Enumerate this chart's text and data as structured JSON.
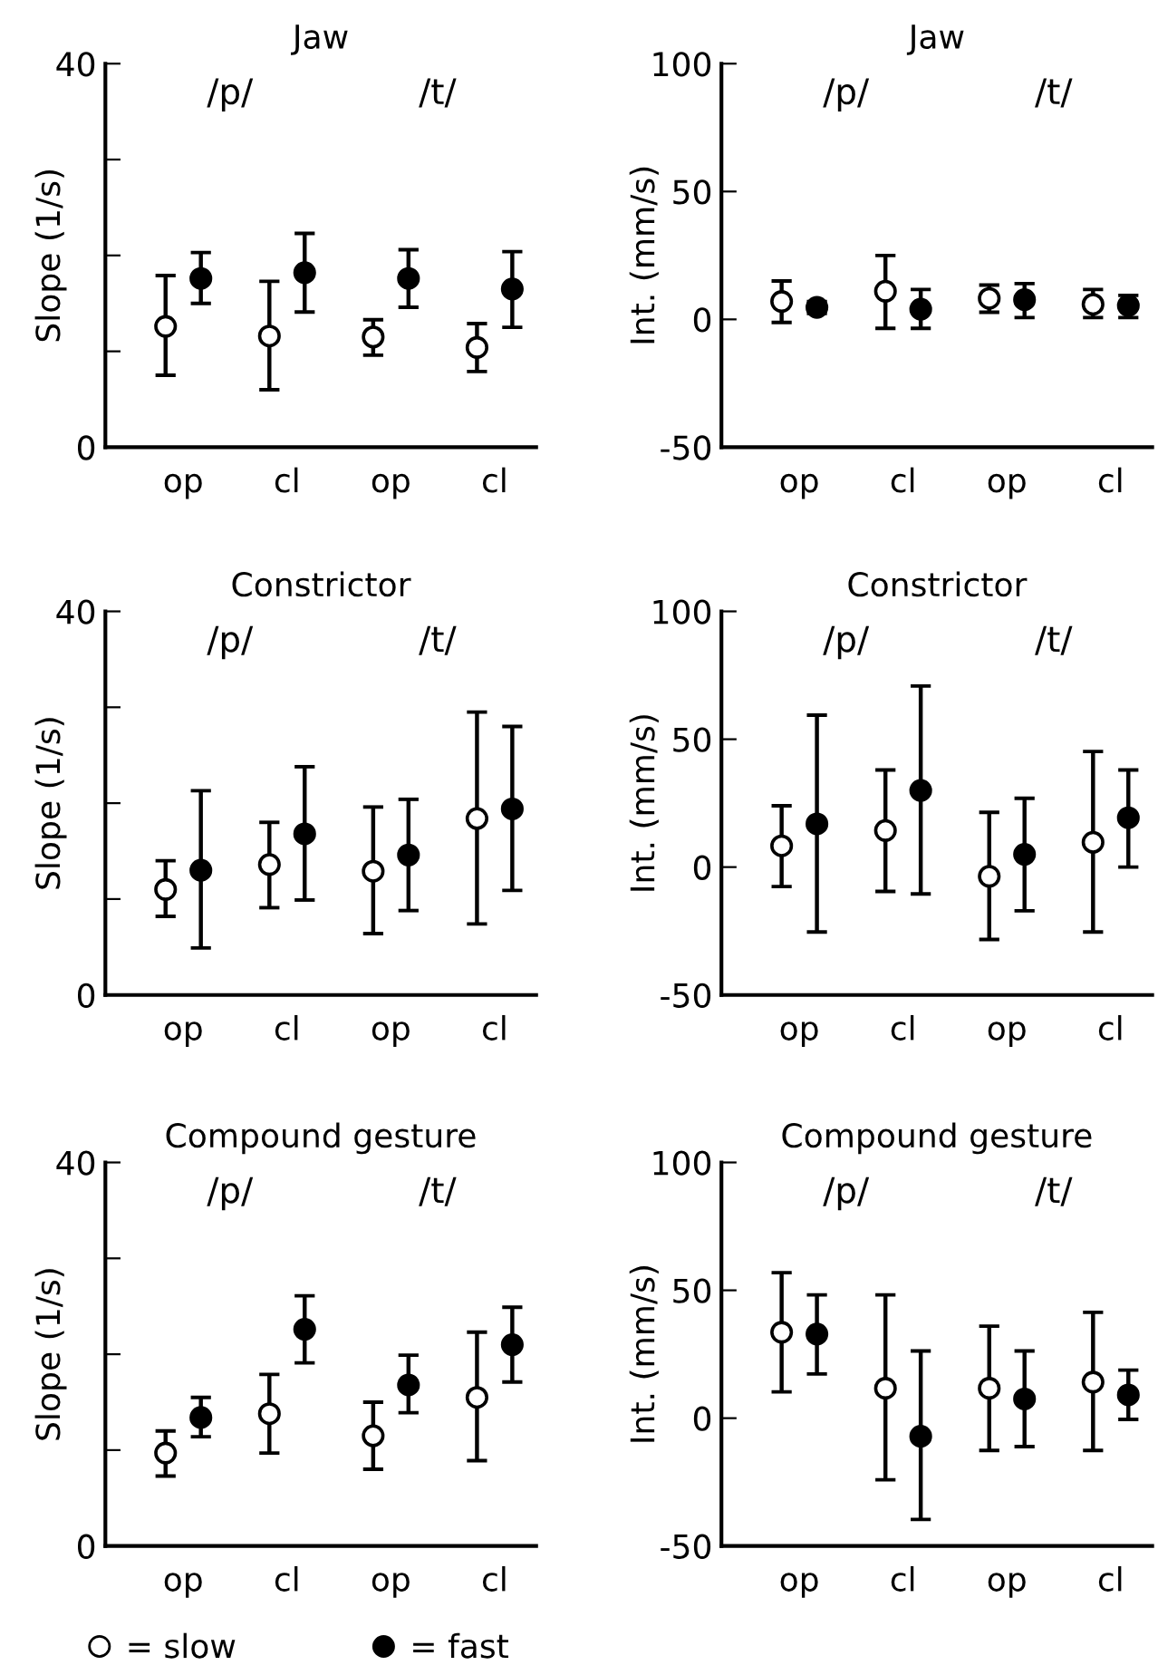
{
  "chart_data": [
    {
      "type": "scatter",
      "title": "Jaw",
      "ylabel": "Slope (1/s)",
      "categories": [
        "op",
        "cl",
        "op",
        "cl"
      ],
      "annotations": [
        "/p/",
        "/t/"
      ],
      "ylim": [
        0,
        40
      ],
      "yticks": [
        0,
        {
          "value": 10,
          "label": null
        },
        {
          "value": 20,
          "label": null
        },
        {
          "value": 30,
          "label": null
        },
        40
      ],
      "marker": "circle",
      "legend": false,
      "series": [
        {
          "color": "#ffffff",
          "values": [
            12.6,
            11.6,
            11.5,
            10.4
          ],
          "errors": [
            [
              7.5,
              17.9
            ],
            [
              6.0,
              17.3
            ],
            [
              9.6,
              13.3
            ],
            [
              7.9,
              12.9
            ]
          ]
        },
        {
          "color": "#000000",
          "values": [
            17.6,
            18.2,
            17.6,
            16.5
          ],
          "errors": [
            [
              15.0,
              20.3
            ],
            [
              14.1,
              22.3
            ],
            [
              14.6,
              20.6
            ],
            [
              12.5,
              20.4
            ]
          ]
        }
      ]
    },
    {
      "type": "scatter",
      "title": "Jaw",
      "ylabel": "Int. (mm/s)",
      "categories": [
        "op",
        "cl",
        "op",
        "cl"
      ],
      "annotations": [
        "/p/",
        "/t/"
      ],
      "ylim": [
        -50,
        100
      ],
      "yticks": [
        -50,
        0,
        50,
        100
      ],
      "marker": "circle",
      "legend": false,
      "series": [
        {
          "color": "#ffffff",
          "values": [
            7.0,
            11,
            8.2,
            5.9
          ],
          "errors": [
            [
              -1.2,
              15
            ],
            [
              -3.5,
              25
            ],
            [
              2.8,
              13.4
            ],
            [
              0.7,
              11.7
            ]
          ]
        },
        {
          "color": "#000000",
          "values": [
            4.7,
            4,
            7.7,
            5.4
          ],
          "errors": [
            [
              2.3,
              7
            ],
            [
              -3.5,
              11.7
            ],
            [
              0.7,
              14
            ],
            [
              0.7,
              9.4
            ]
          ]
        }
      ]
    },
    {
      "type": "scatter",
      "title": "Constrictor",
      "ylabel": "Slope (1/s)",
      "categories": [
        "op",
        "cl",
        "op",
        "cl"
      ],
      "annotations": [
        "/p/",
        "/t/"
      ],
      "ylim": [
        0,
        40
      ],
      "yticks": [
        0,
        {
          "value": 10,
          "label": null
        },
        {
          "value": 20,
          "label": null
        },
        {
          "value": 30,
          "label": null
        },
        40
      ],
      "marker": "circle",
      "legend": false,
      "series": [
        {
          "color": "#ffffff",
          "values": [
            11.0,
            13.6,
            12.9,
            18.4
          ],
          "errors": [
            [
              8.2,
              14.0
            ],
            [
              9.1,
              18.0
            ],
            [
              6.4,
              19.6
            ],
            [
              7.4,
              29.5
            ]
          ]
        },
        {
          "color": "#000000",
          "values": [
            13.0,
            16.8,
            14.6,
            19.4
          ],
          "errors": [
            [
              4.9,
              21.3
            ],
            [
              9.9,
              23.8
            ],
            [
              8.8,
              20.4
            ],
            [
              10.9,
              28.0
            ]
          ]
        }
      ]
    },
    {
      "type": "scatter",
      "title": "Constrictor",
      "ylabel": "Int. (mm/s)",
      "categories": [
        "op",
        "cl",
        "op",
        "cl"
      ],
      "annotations": [
        "/p/",
        "/t/"
      ],
      "ylim": [
        -50,
        100
      ],
      "yticks": [
        -50,
        0,
        50,
        100
      ],
      "marker": "circle",
      "legend": false,
      "series": [
        {
          "color": "#ffffff",
          "values": [
            8.3,
            14.3,
            -3.6,
            9.7
          ],
          "errors": [
            [
              -7.6,
              24
            ],
            [
              -9.5,
              38
            ],
            [
              -28.3,
              21.4
            ],
            [
              -25.4,
              45.2
            ]
          ]
        },
        {
          "color": "#000000",
          "values": [
            16.9,
            30,
            5,
            19.3
          ],
          "errors": [
            [
              -25.4,
              59.4
            ],
            [
              -10.5,
              70.8
            ],
            [
              -17.1,
              26.9
            ],
            [
              0,
              38
            ]
          ]
        }
      ]
    },
    {
      "type": "scatter",
      "title": "Compound gesture",
      "ylabel": "Slope (1/s)",
      "categories": [
        "op",
        "cl",
        "op",
        "cl"
      ],
      "annotations": [
        "/p/",
        "/t/"
      ],
      "ylim": [
        0,
        40
      ],
      "yticks": [
        0,
        {
          "value": 10,
          "label": null
        },
        {
          "value": 20,
          "label": null
        },
        {
          "value": 30,
          "label": null
        },
        40
      ],
      "marker": "circle",
      "legend": "bottom",
      "series": [
        {
          "name": "= slow",
          "color": "#ffffff",
          "values": [
            9.7,
            13.8,
            11.5,
            15.5
          ],
          "errors": [
            [
              7.3,
              12.0
            ],
            [
              9.7,
              17.9
            ],
            [
              8.0,
              15.0
            ],
            [
              8.9,
              22.3
            ]
          ]
        },
        {
          "name": "= fast",
          "color": "#000000",
          "values": [
            13.4,
            22.6,
            16.8,
            21.0
          ],
          "errors": [
            [
              11.4,
              15.5
            ],
            [
              19.1,
              26.1
            ],
            [
              13.9,
              19.9
            ],
            [
              17.1,
              24.9
            ]
          ]
        }
      ]
    },
    {
      "type": "scatter",
      "title": "Compound gesture",
      "ylabel": "Int. (mm/s)",
      "categories": [
        "op",
        "cl",
        "op",
        "cl"
      ],
      "annotations": [
        "/p/",
        "/t/"
      ],
      "ylim": [
        -50,
        100
      ],
      "yticks": [
        -50,
        0,
        50,
        100
      ],
      "marker": "circle",
      "legend": false,
      "series": [
        {
          "color": "#ffffff",
          "values": [
            33.6,
            11.7,
            11.7,
            14.1
          ],
          "errors": [
            [
              10.3,
              56.9
            ],
            [
              -24.1,
              48.2
            ],
            [
              -12.6,
              36
            ],
            [
              -12.6,
              41.4
            ]
          ]
        },
        {
          "color": "#000000",
          "values": [
            32.9,
            -7.1,
            7.5,
            9.1
          ],
          "errors": [
            [
              17.3,
              48.2
            ],
            [
              -39.6,
              26.3
            ],
            [
              -11.1,
              26.3
            ],
            [
              -0.5,
              18.8
            ]
          ]
        }
      ]
    }
  ]
}
